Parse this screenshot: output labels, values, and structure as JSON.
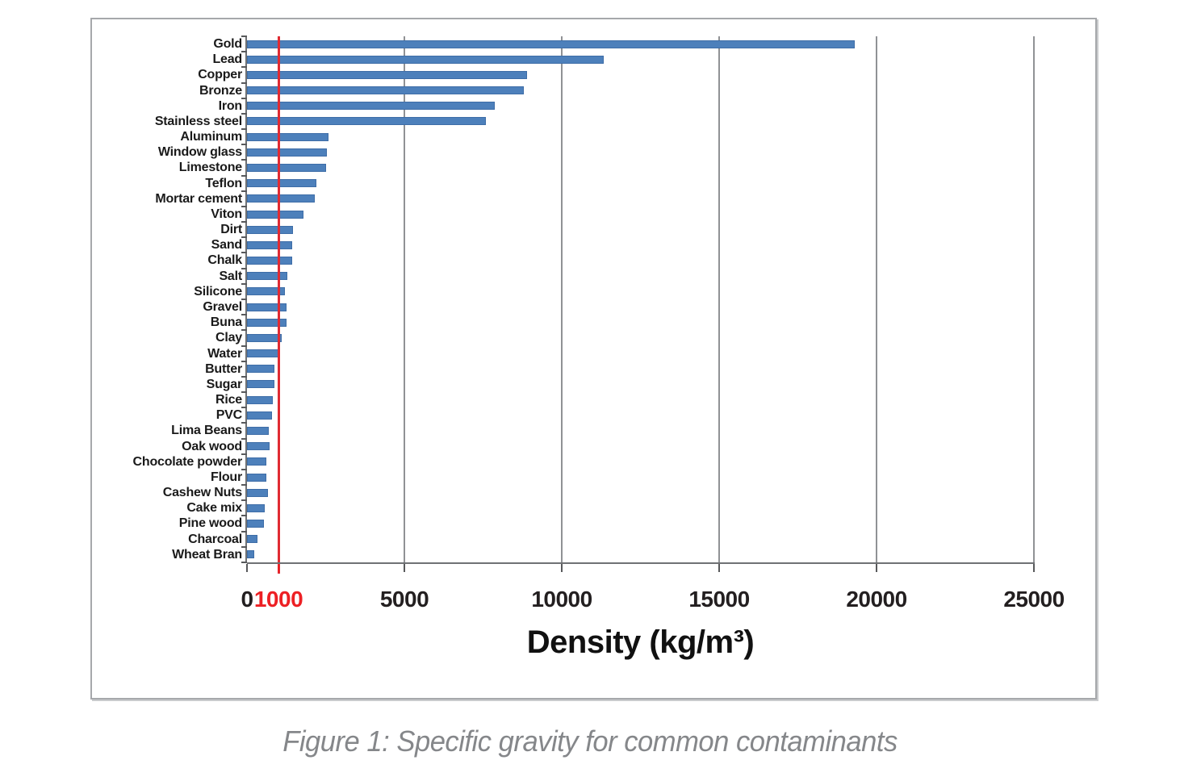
{
  "figure": {
    "caption": "Figure 1: Specific gravity for common contaminants"
  },
  "colors": {
    "bar_fill": "#4d80bb",
    "bar_border": "#3e6da7",
    "reference_line": "#e02b33",
    "gridline": "#909295",
    "axis_line": "#6f7174",
    "category_tick": "#58595b",
    "tick_label_default": "#231f20",
    "tick_label_reference": "#ed2024",
    "caption_text": "#85878a"
  },
  "chart_data": {
    "type": "bar",
    "orientation": "horizontal",
    "title": "",
    "xlabel": "Density (kg/m³)",
    "ylabel": "",
    "xlim": [
      0,
      25000
    ],
    "grid": "vertical-only",
    "legend": "none",
    "gridline_values": [
      5000,
      10000,
      15000,
      20000,
      25000
    ],
    "reference_line": {
      "value": 1000,
      "label": "1000",
      "color": "#e02b33"
    },
    "x_ticks": [
      {
        "value": 0,
        "label": "0",
        "color": "#231f20"
      },
      {
        "value": 1000,
        "label": "1000",
        "color": "#ed2024"
      },
      {
        "value": 5000,
        "label": "5000",
        "color": "#231f20"
      },
      {
        "value": 10000,
        "label": "10000",
        "color": "#231f20"
      },
      {
        "value": 15000,
        "label": "15000",
        "color": "#231f20"
      },
      {
        "value": 20000,
        "label": "20000",
        "color": "#231f20"
      },
      {
        "value": 25000,
        "label": "25000",
        "color": "#231f20"
      }
    ],
    "categories": [
      "Gold",
      "Lead",
      "Copper",
      "Bronze",
      "Iron",
      "Stainless steel",
      "Aluminum",
      "Window glass",
      "Limestone",
      "Teflon",
      "Mortar cement",
      "Viton",
      "Dirt",
      "Sand",
      "Chalk",
      "Salt",
      "Silicone",
      "Gravel",
      "Buna",
      "Clay",
      "Water",
      "Butter",
      "Sugar",
      "Rice",
      "PVC",
      "Lima Beans",
      "Oak wood",
      "Chocolate powder",
      "Flour",
      "Cashew Nuts",
      "Cake mix",
      "Pine wood",
      "Charcoal",
      "Wheat Bran"
    ],
    "values": [
      19300,
      11340,
      8900,
      8800,
      7870,
      7600,
      2600,
      2550,
      2500,
      2200,
      2150,
      1800,
      1470,
      1430,
      1430,
      1280,
      1200,
      1250,
      1250,
      1090,
      1000,
      880,
      880,
      830,
      800,
      700,
      710,
      620,
      620,
      660,
      560,
      530,
      330,
      240
    ]
  }
}
